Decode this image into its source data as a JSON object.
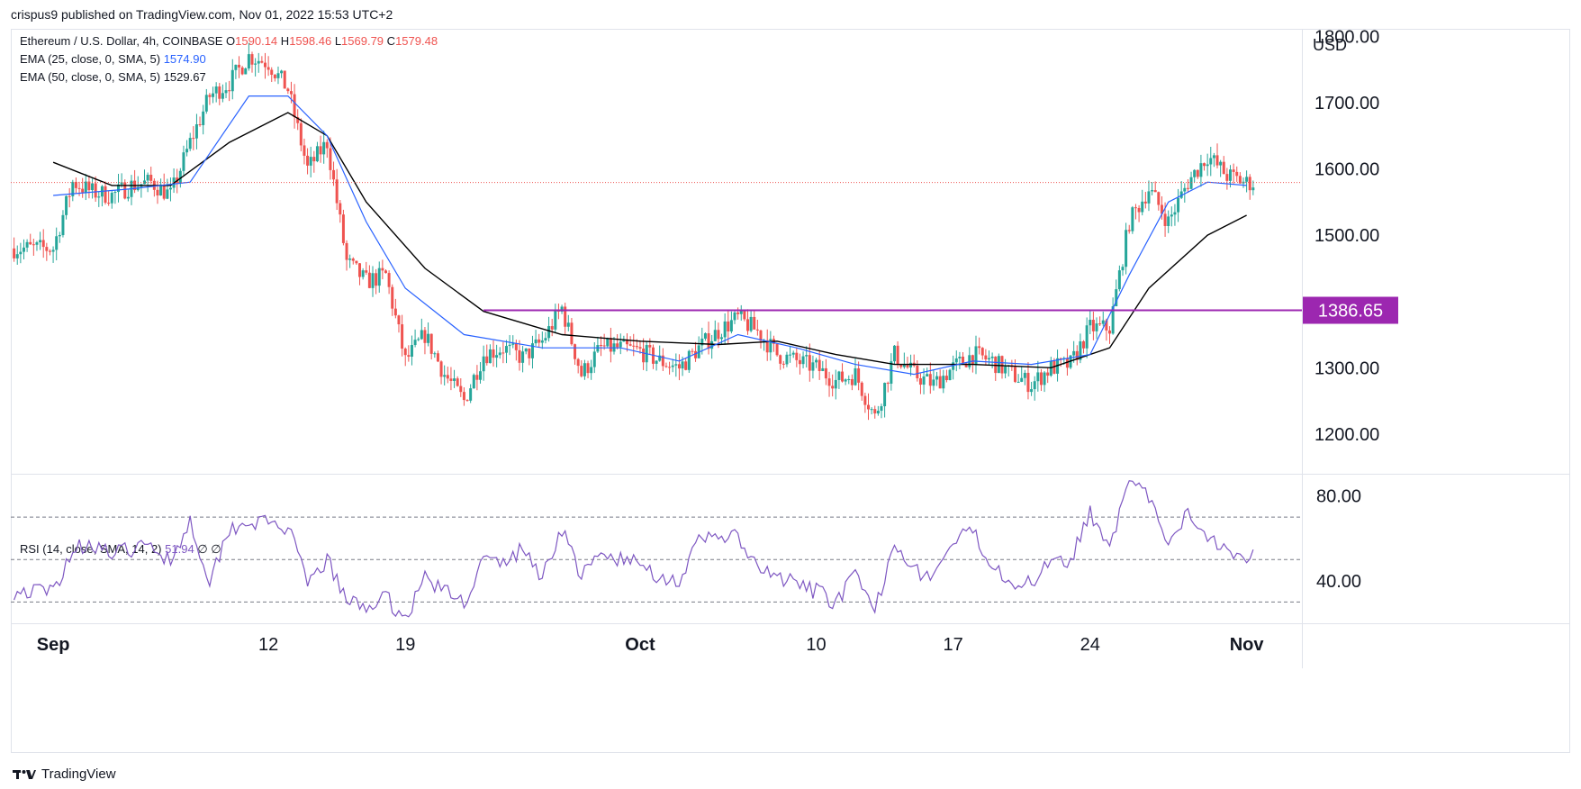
{
  "header": {
    "published": "crispus9 published on TradingView.com, Nov 01, 2022 15:53 UTC+2"
  },
  "legend": {
    "symbol": "Ethereum / U.S. Dollar, 4h, COINBASE",
    "o_label": "O",
    "o_value": "1590.14",
    "h_label": "H",
    "h_value": "1598.46",
    "l_label": "L",
    "l_value": "1569.79",
    "c_label": "C",
    "c_value": "1579.48",
    "ema25_label": "EMA (25, close, 0, SMA, 5)",
    "ema25_value": "1574.90",
    "ema50_label": "EMA (50, close, 0, SMA, 5)",
    "ema50_value": "1529.67",
    "rsi_label": "RSI (14, close, SMA, 14, 2)",
    "rsi_value": "51.94",
    "rsi_extra": "∅ ∅"
  },
  "footer": {
    "brand": "TradingView",
    "logo_icon": "tradingview-logo-icon"
  },
  "colors": {
    "up": "#26a69a",
    "down": "#ef5350",
    "ema25": "#2962ff",
    "ema50": "#000000",
    "rsi": "#7e57c2",
    "level": "#9c27b0",
    "lastprice": "#ef5350"
  },
  "chart_data": [
    {
      "type": "candlestick",
      "title": "Ethereum / U.S. Dollar, 4h, COINBASE",
      "currency": "USD",
      "ylim": [
        1140,
        1810
      ],
      "y_ticks": [
        "1800.00",
        "1700.00",
        "1600.00",
        "1500.00",
        "1300.00",
        "1200.00"
      ],
      "x_ticks": [
        "Sep",
        "12",
        "19",
        "Oct",
        "10",
        "17",
        "24",
        "Nov"
      ],
      "last_price": 1579.48,
      "horizontal_level": {
        "value": 1386.65,
        "label": "1386.65",
        "from_date": "2022-09-23"
      },
      "close_path": [
        [
          "2022-09-01",
          1480
        ],
        [
          "2022-09-02",
          1580
        ],
        [
          "2022-09-03",
          1565
        ],
        [
          "2022-09-04",
          1560
        ],
        [
          "2022-09-05",
          1575
        ],
        [
          "2022-09-06",
          1580
        ],
        [
          "2022-09-07",
          1560
        ],
        [
          "2022-09-08",
          1640
        ],
        [
          "2022-09-09",
          1710
        ],
        [
          "2022-09-10",
          1730
        ],
        [
          "2022-09-11",
          1770
        ],
        [
          "2022-09-12",
          1760
        ],
        [
          "2022-09-13",
          1720
        ],
        [
          "2022-09-14",
          1600
        ],
        [
          "2022-09-15",
          1640
        ],
        [
          "2022-09-16",
          1460
        ],
        [
          "2022-09-17",
          1430
        ],
        [
          "2022-09-18",
          1440
        ],
        [
          "2022-09-19",
          1310
        ],
        [
          "2022-09-20",
          1350
        ],
        [
          "2022-09-21",
          1290
        ],
        [
          "2022-09-22",
          1250
        ],
        [
          "2022-09-23",
          1320
        ],
        [
          "2022-09-24",
          1330
        ],
        [
          "2022-09-25",
          1315
        ],
        [
          "2022-09-26",
          1340
        ],
        [
          "2022-09-27",
          1390
        ],
        [
          "2022-09-28",
          1290
        ],
        [
          "2022-09-29",
          1330
        ],
        [
          "2022-09-30",
          1330
        ],
        [
          "2022-10-01",
          1325
        ],
        [
          "2022-10-02",
          1310
        ],
        [
          "2022-10-03",
          1300
        ],
        [
          "2022-10-04",
          1330
        ],
        [
          "2022-10-05",
          1355
        ],
        [
          "2022-10-06",
          1375
        ],
        [
          "2022-10-07",
          1355
        ],
        [
          "2022-10-08",
          1320
        ],
        [
          "2022-10-09",
          1310
        ],
        [
          "2022-10-10",
          1300
        ],
        [
          "2022-10-11",
          1280
        ],
        [
          "2022-10-12",
          1290
        ],
        [
          "2022-10-13",
          1225
        ],
        [
          "2022-10-14",
          1320
        ],
        [
          "2022-10-15",
          1290
        ],
        [
          "2022-10-16",
          1275
        ],
        [
          "2022-10-17",
          1300
        ],
        [
          "2022-10-18",
          1320
        ],
        [
          "2022-10-19",
          1310
        ],
        [
          "2022-10-20",
          1290
        ],
        [
          "2022-10-21",
          1275
        ],
        [
          "2022-10-22",
          1300
        ],
        [
          "2022-10-23",
          1305
        ],
        [
          "2022-10-24",
          1360
        ],
        [
          "2022-10-25",
          1360
        ],
        [
          "2022-10-26",
          1520
        ],
        [
          "2022-10-27",
          1570
        ],
        [
          "2022-10-28",
          1520
        ],
        [
          "2022-10-29",
          1580
        ],
        [
          "2022-10-30",
          1620
        ],
        [
          "2022-10-31",
          1590
        ],
        [
          "2022-11-01",
          1579
        ]
      ],
      "ema25_path": [
        [
          "2022-09-01",
          1560
        ],
        [
          "2022-09-05",
          1570
        ],
        [
          "2022-09-08",
          1580
        ],
        [
          "2022-09-11",
          1710
        ],
        [
          "2022-09-13",
          1710
        ],
        [
          "2022-09-15",
          1650
        ],
        [
          "2022-09-17",
          1520
        ],
        [
          "2022-09-19",
          1420
        ],
        [
          "2022-09-22",
          1350
        ],
        [
          "2022-09-26",
          1330
        ],
        [
          "2022-09-30",
          1330
        ],
        [
          "2022-10-03",
          1310
        ],
        [
          "2022-10-06",
          1350
        ],
        [
          "2022-10-09",
          1330
        ],
        [
          "2022-10-12",
          1305
        ],
        [
          "2022-10-15",
          1290
        ],
        [
          "2022-10-18",
          1310
        ],
        [
          "2022-10-21",
          1305
        ],
        [
          "2022-10-24",
          1320
        ],
        [
          "2022-10-26",
          1440
        ],
        [
          "2022-10-28",
          1550
        ],
        [
          "2022-10-30",
          1580
        ],
        [
          "2022-11-01",
          1575
        ]
      ],
      "ema50_path": [
        [
          "2022-09-01",
          1610
        ],
        [
          "2022-09-04",
          1575
        ],
        [
          "2022-09-07",
          1575
        ],
        [
          "2022-09-10",
          1640
        ],
        [
          "2022-09-13",
          1685
        ],
        [
          "2022-09-15",
          1650
        ],
        [
          "2022-09-17",
          1550
        ],
        [
          "2022-09-20",
          1450
        ],
        [
          "2022-09-23",
          1385
        ],
        [
          "2022-09-27",
          1350
        ],
        [
          "2022-10-01",
          1340
        ],
        [
          "2022-10-05",
          1335
        ],
        [
          "2022-10-08",
          1340
        ],
        [
          "2022-10-11",
          1320
        ],
        [
          "2022-10-14",
          1305
        ],
        [
          "2022-10-18",
          1305
        ],
        [
          "2022-10-22",
          1300
        ],
        [
          "2022-10-25",
          1330
        ],
        [
          "2022-10-27",
          1420
        ],
        [
          "2022-10-30",
          1500
        ],
        [
          "2022-11-01",
          1530
        ]
      ]
    },
    {
      "type": "line",
      "title": "RSI (14, close, SMA, 14, 2)",
      "ylim": [
        20,
        90
      ],
      "y_ticks": [
        "80.00",
        "40.00"
      ],
      "bands": [
        30,
        50,
        70
      ],
      "last_value": 51.94,
      "rsi_path": [
        [
          "2022-09-01",
          35
        ],
        [
          "2022-09-02",
          55
        ],
        [
          "2022-09-03",
          58
        ],
        [
          "2022-09-04",
          52
        ],
        [
          "2022-09-05",
          55
        ],
        [
          "2022-09-06",
          56
        ],
        [
          "2022-09-07",
          50
        ],
        [
          "2022-09-08",
          68
        ],
        [
          "2022-09-09",
          40
        ],
        [
          "2022-09-10",
          65
        ],
        [
          "2022-09-11",
          68
        ],
        [
          "2022-09-12",
          67
        ],
        [
          "2022-09-13",
          65
        ],
        [
          "2022-09-14",
          38
        ],
        [
          "2022-09-15",
          50
        ],
        [
          "2022-09-16",
          30
        ],
        [
          "2022-09-17",
          28
        ],
        [
          "2022-09-18",
          32
        ],
        [
          "2022-09-19",
          22
        ],
        [
          "2022-09-20",
          42
        ],
        [
          "2022-09-21",
          35
        ],
        [
          "2022-09-22",
          30
        ],
        [
          "2022-09-23",
          50
        ],
        [
          "2022-09-24",
          48
        ],
        [
          "2022-09-25",
          55
        ],
        [
          "2022-09-26",
          42
        ],
        [
          "2022-09-27",
          65
        ],
        [
          "2022-09-28",
          42
        ],
        [
          "2022-09-29",
          52
        ],
        [
          "2022-09-30",
          50
        ],
        [
          "2022-10-01",
          48
        ],
        [
          "2022-10-02",
          42
        ],
        [
          "2022-10-03",
          40
        ],
        [
          "2022-10-04",
          58
        ],
        [
          "2022-10-05",
          62
        ],
        [
          "2022-10-06",
          60
        ],
        [
          "2022-10-07",
          45
        ],
        [
          "2022-10-08",
          42
        ],
        [
          "2022-10-09",
          38
        ],
        [
          "2022-10-10",
          35
        ],
        [
          "2022-10-11",
          30
        ],
        [
          "2022-10-12",
          42
        ],
        [
          "2022-10-13",
          25
        ],
        [
          "2022-10-14",
          60
        ],
        [
          "2022-10-15",
          45
        ],
        [
          "2022-10-16",
          42
        ],
        [
          "2022-10-17",
          58
        ],
        [
          "2022-10-18",
          63
        ],
        [
          "2022-10-19",
          48
        ],
        [
          "2022-10-20",
          40
        ],
        [
          "2022-10-21",
          38
        ],
        [
          "2022-10-22",
          52
        ],
        [
          "2022-10-23",
          50
        ],
        [
          "2022-10-24",
          72
        ],
        [
          "2022-10-25",
          58
        ],
        [
          "2022-10-26",
          85
        ],
        [
          "2022-10-27",
          80
        ],
        [
          "2022-10-28",
          55
        ],
        [
          "2022-10-29",
          72
        ],
        [
          "2022-10-30",
          62
        ],
        [
          "2022-10-31",
          55
        ],
        [
          "2022-11-01",
          52
        ]
      ]
    }
  ]
}
